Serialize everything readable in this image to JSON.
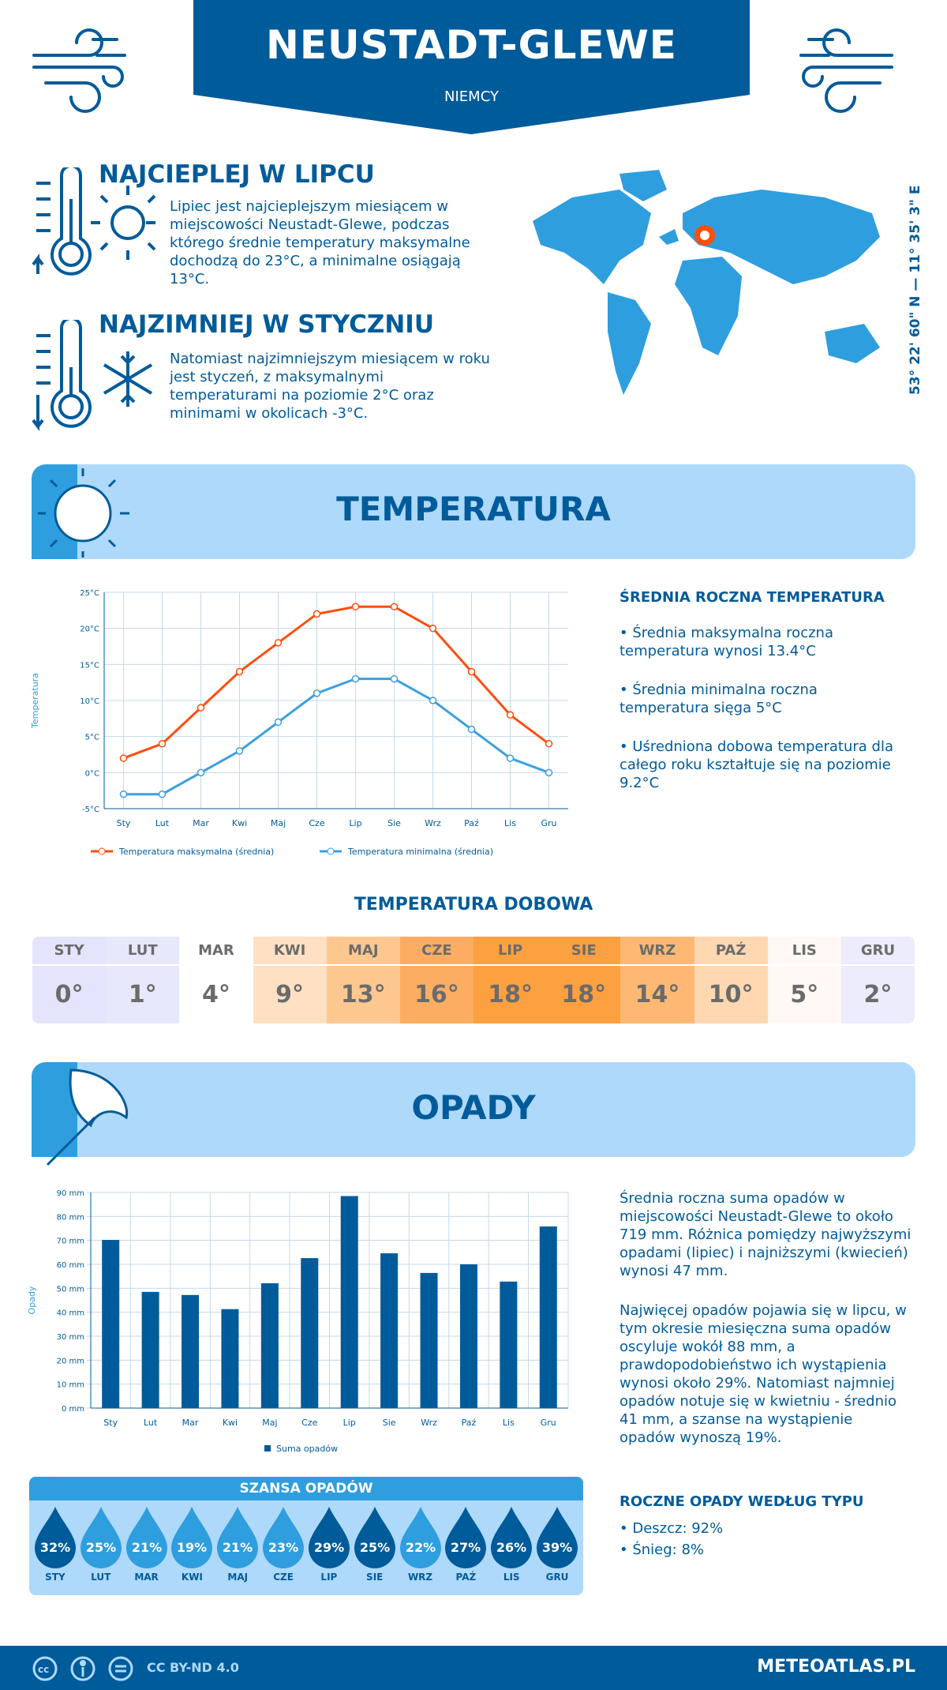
{
  "header": {
    "title": "NEUSTADT-GLEWE",
    "country": "NIEMCY"
  },
  "warmest": {
    "title": "NAJCIEPLEJ W LIPCU",
    "text": "Lipiec jest najcieplejszym miesiącem w miejscowości Neustadt-Glewe, podczas którego średnie temperatury maksymalne dochodzą do 23°C, a minimalne osiągają 13°C."
  },
  "coldest": {
    "title": "NAJZIMNIEJ W STYCZNIU",
    "text": "Natomiast najzimniejszym miesiącem w roku jest styczeń, z maksymalnymi temperaturami na poziomie 2°C oraz minimami w okolicach -3°C."
  },
  "coords": "53° 22' 60\" N — 11° 35' 3\" E",
  "temp_section": {
    "title": "TEMPERATURA",
    "side_title": "ŚREDNIA ROCZNA TEMPERATURA",
    "bullets": [
      "• Średnia maksymalna roczna temperatura wynosi 13.4°C",
      "• Średnia minimalna roczna temperatura sięga 5°C",
      "• Uśredniona dobowa temperatura dla całego roku kształtuje się na poziomie 9.2°C"
    ]
  },
  "daily": {
    "title": "TEMPERATURA DOBOWA",
    "items": [
      {
        "m": "STY",
        "v": "0°",
        "c": "#e4e4fc"
      },
      {
        "m": "LUT",
        "v": "1°",
        "c": "#e8e8fc"
      },
      {
        "m": "MAR",
        "v": "4°",
        "c": "#ffffff"
      },
      {
        "m": "KWI",
        "v": "9°",
        "c": "#ffe0c2"
      },
      {
        "m": "MAJ",
        "v": "13°",
        "c": "#fdc890"
      },
      {
        "m": "CZE",
        "v": "16°",
        "c": "#fdad62"
      },
      {
        "m": "LIP",
        "v": "18°",
        "c": "#fda040"
      },
      {
        "m": "SIE",
        "v": "18°",
        "c": "#fda040"
      },
      {
        "m": "WRZ",
        "v": "14°",
        "c": "#fdb874"
      },
      {
        "m": "PAŹ",
        "v": "10°",
        "c": "#ffd8b2"
      },
      {
        "m": "LIS",
        "v": "5°",
        "c": "#fff8f4"
      },
      {
        "m": "GRU",
        "v": "2°",
        "c": "#ececfc"
      }
    ]
  },
  "precip_section": {
    "title": "OPADY",
    "p1": "Średnia roczna suma opadów w miejscowości Neustadt-Glewe to około 719 mm. Różnica pomiędzy najwyższymi opadami (lipiec) i najniższymi (kwiecień) wynosi 47 mm.",
    "p2": "Najwięcej opadów pojawia się w lipcu, w tym okresie miesięczna suma opadów oscyluje wokół 88 mm, a prawdopodobieństwo ich wystąpienia wynosi około 29%. Natomiast najmniej opadów notuje się w kwietniu - średnio 41 mm, a szanse na wystąpienie opadów wynoszą 19%.",
    "type_title": "ROCZNE OPADY WEDŁUG TYPU",
    "types": [
      "• Deszcz: 92%",
      "• Śnieg: 8%"
    ]
  },
  "chance": {
    "title": "SZANSA OPADÓW",
    "items": [
      {
        "m": "STY",
        "v": "32%",
        "c": "#005b9a"
      },
      {
        "m": "LUT",
        "v": "25%",
        "c": "#2e9ede"
      },
      {
        "m": "MAR",
        "v": "21%",
        "c": "#2e9ede"
      },
      {
        "m": "KWI",
        "v": "19%",
        "c": "#2e9ede"
      },
      {
        "m": "MAJ",
        "v": "21%",
        "c": "#2e9ede"
      },
      {
        "m": "CZE",
        "v": "23%",
        "c": "#2e9ede"
      },
      {
        "m": "LIP",
        "v": "29%",
        "c": "#005b9a"
      },
      {
        "m": "SIE",
        "v": "25%",
        "c": "#005b9a"
      },
      {
        "m": "WRZ",
        "v": "22%",
        "c": "#2e9ede"
      },
      {
        "m": "PAŹ",
        "v": "27%",
        "c": "#005b9a"
      },
      {
        "m": "LIS",
        "v": "26%",
        "c": "#005b9a"
      },
      {
        "m": "GRU",
        "v": "39%",
        "c": "#005b9a"
      }
    ]
  },
  "footer": {
    "license": "CC BY-ND 4.0",
    "site": "METEOATLAS.PL"
  },
  "colors": {
    "primary": "#005b9a",
    "light": "#aed9fb",
    "accent": "#2e9ede",
    "max": "#ff4e0e",
    "min": "#3d9fdf"
  },
  "chart_data": [
    {
      "type": "line",
      "categories": [
        "Sty",
        "Lut",
        "Mar",
        "Kwi",
        "Maj",
        "Cze",
        "Lip",
        "Sie",
        "Wrz",
        "Paź",
        "Lis",
        "Gru"
      ],
      "ylabel": "Temperatura",
      "ylim": [
        -5,
        25
      ],
      "yticks": [
        "-5°C",
        "0°C",
        "5°C",
        "10°C",
        "15°C",
        "20°C",
        "25°C"
      ],
      "grid": true,
      "legend": "bottom",
      "series": [
        {
          "name": "Temperatura maksymalna (średnia)",
          "color": "#ff4e0e",
          "values": [
            2,
            4,
            9,
            14,
            18,
            22,
            23,
            23,
            20,
            14,
            8,
            4
          ]
        },
        {
          "name": "Temperatura minimalna (średnia)",
          "color": "#3d9fdf",
          "values": [
            -3,
            -3,
            0,
            3,
            7,
            11,
            13,
            13,
            10,
            6,
            2,
            0
          ]
        }
      ]
    },
    {
      "type": "bar",
      "categories": [
        "Sty",
        "Lut",
        "Mar",
        "Kwi",
        "Maj",
        "Cze",
        "Lip",
        "Sie",
        "Wrz",
        "Paź",
        "Lis",
        "Gru"
      ],
      "ylabel": "Opady",
      "ylim": [
        0,
        90
      ],
      "yticks": [
        "0 mm",
        "10 mm",
        "20 mm",
        "30 mm",
        "40 mm",
        "50 mm",
        "60 mm",
        "70 mm",
        "80 mm",
        "90 mm"
      ],
      "grid": true,
      "legend": "bottom",
      "series": [
        {
          "name": "Suma opadów",
          "color": "#005b9a",
          "values": [
            70.2,
            48.5,
            47.2,
            41.3,
            52.1,
            62.6,
            88.5,
            64.6,
            56.4,
            60.0,
            52.8,
            75.8
          ]
        }
      ]
    }
  ]
}
